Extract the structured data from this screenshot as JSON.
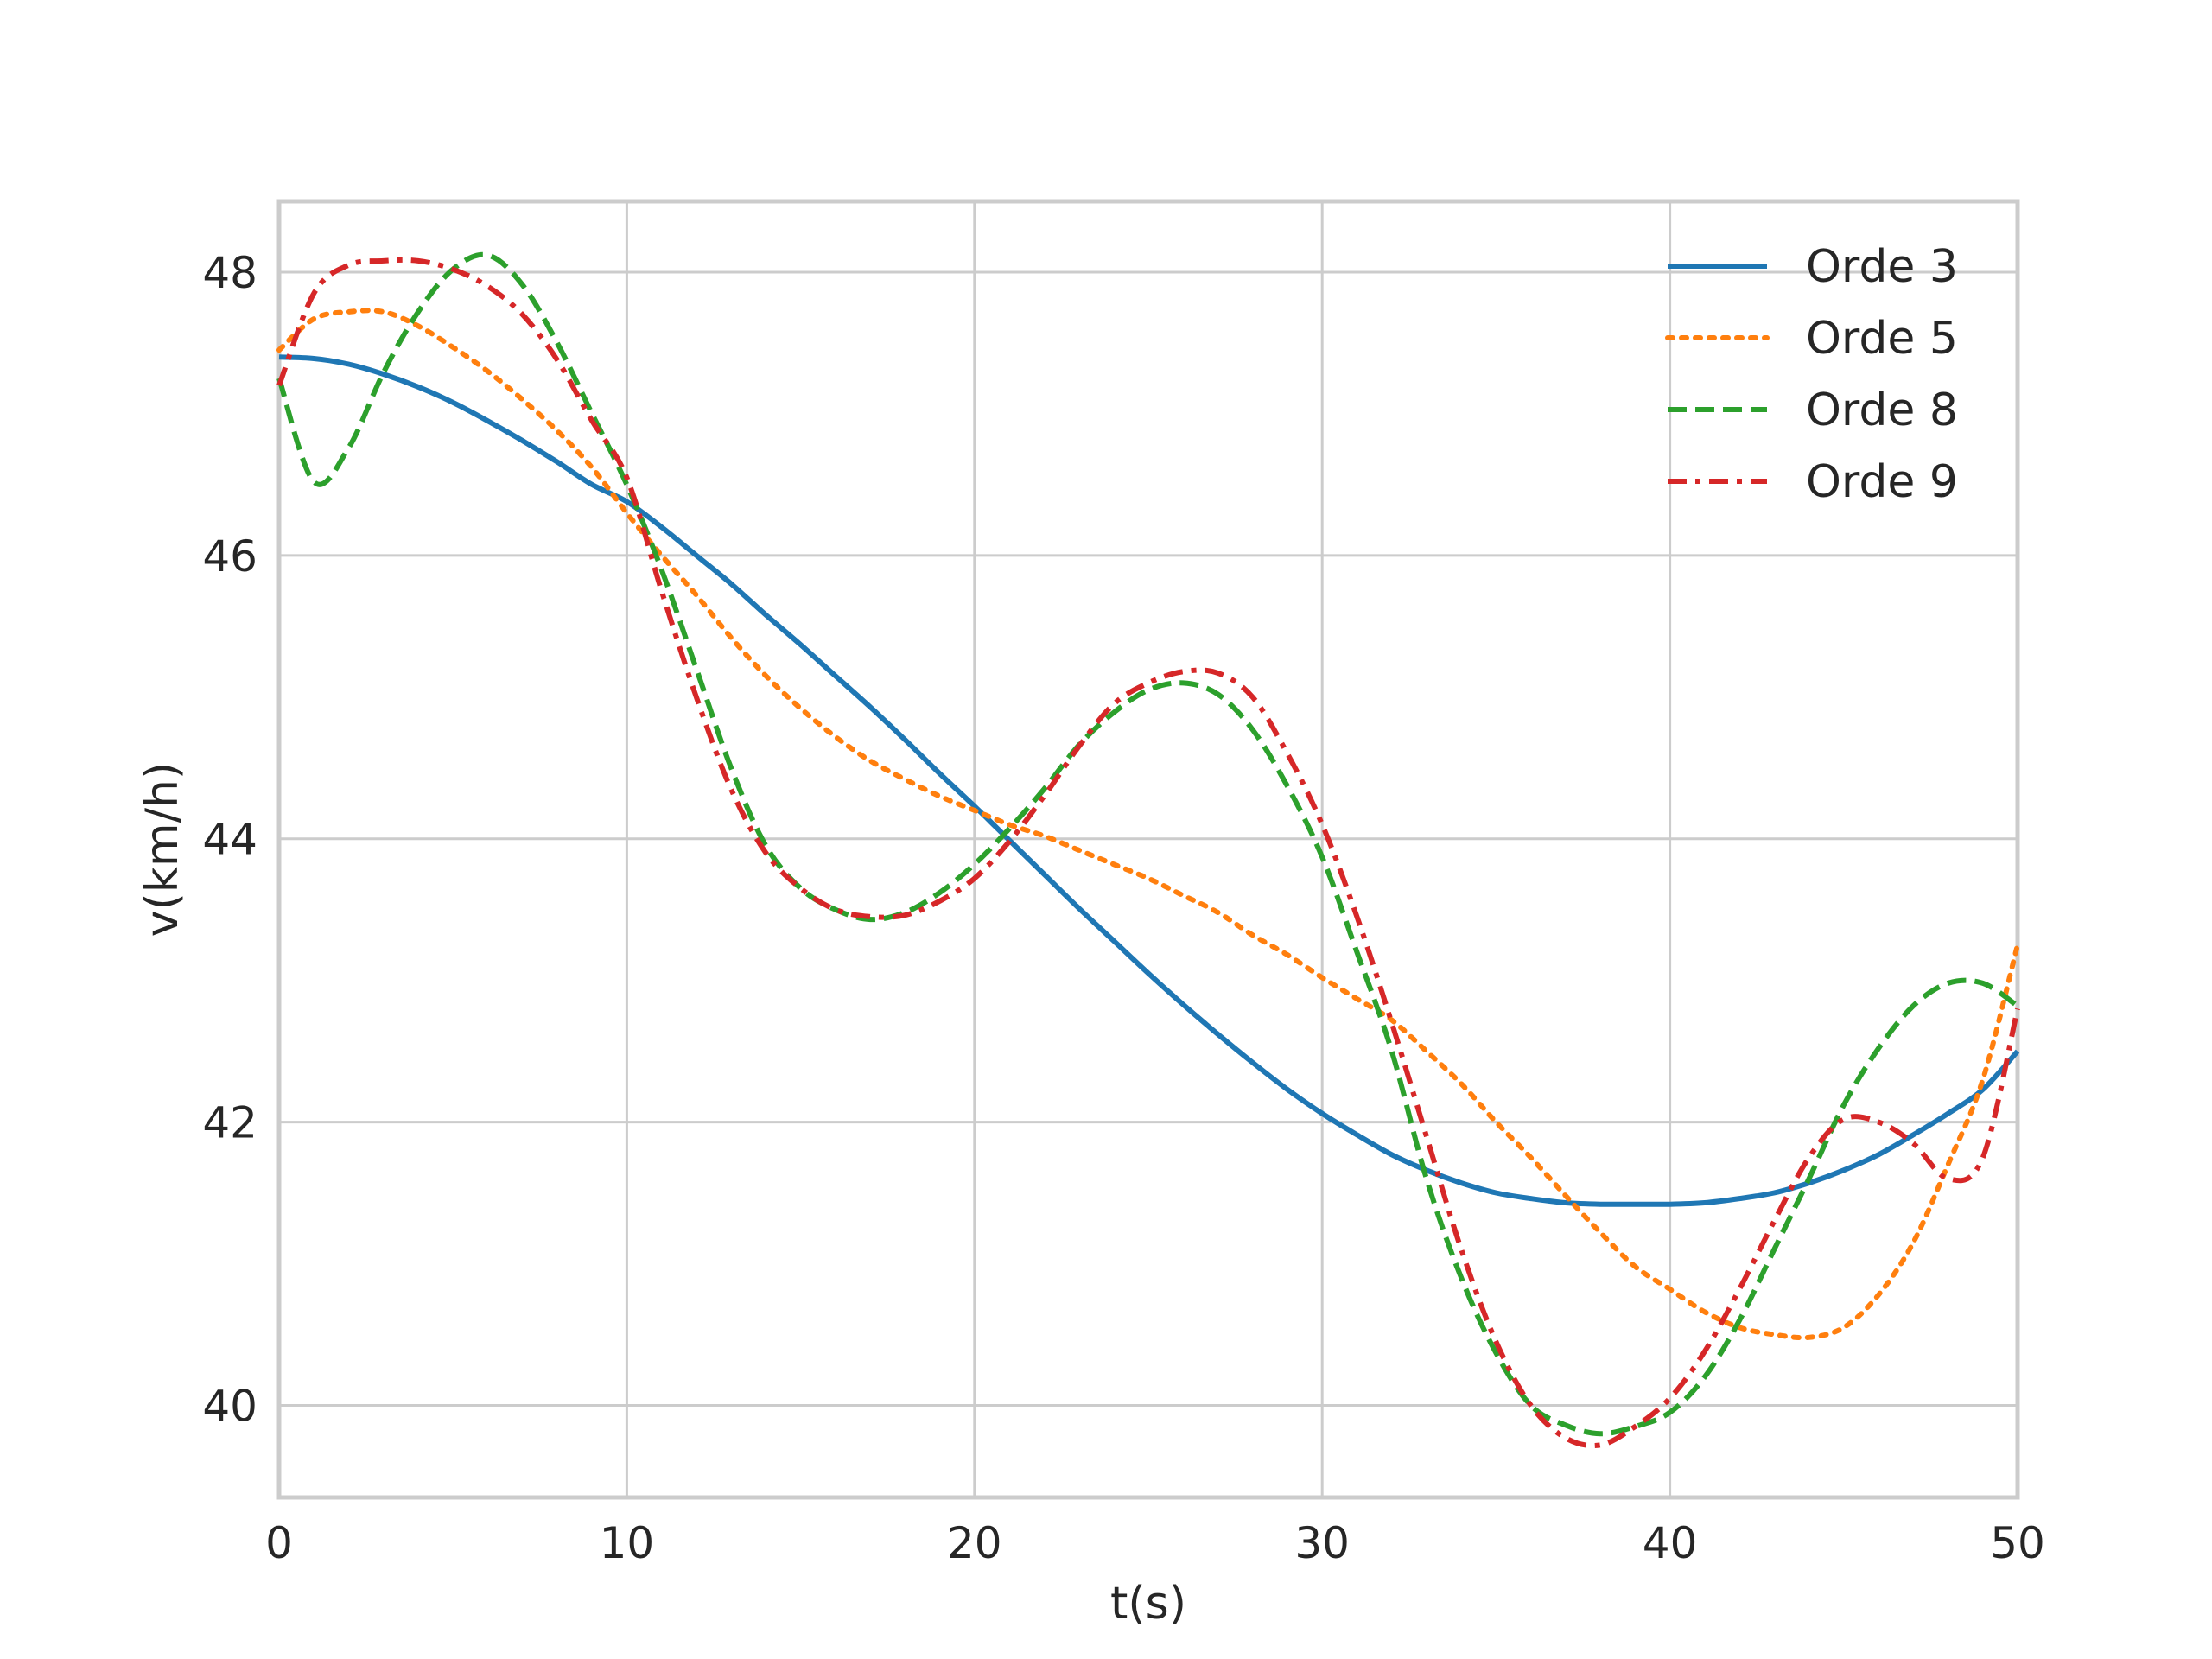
{
  "chart_data": {
    "type": "line",
    "title": "",
    "xlabel": "t(s)",
    "ylabel": "v(km/h)",
    "xlim": [
      0,
      50
    ],
    "ylim": [
      39.35,
      48.5
    ],
    "xticks": [
      0,
      10,
      20,
      30,
      40,
      50
    ],
    "xtick_labels": [
      "0",
      "10",
      "20",
      "30",
      "40",
      "50"
    ],
    "yticks": [
      40,
      42,
      44,
      46,
      48
    ],
    "ytick_labels": [
      "40",
      "42",
      "44",
      "46",
      "48"
    ],
    "grid": true,
    "legend_position": "top-right",
    "x": [
      0,
      1,
      2,
      3,
      4,
      5,
      6,
      7,
      8,
      9,
      10,
      11,
      12,
      13,
      14,
      15,
      16,
      17,
      18,
      19,
      20,
      21,
      22,
      23,
      24,
      25,
      26,
      27,
      28,
      29,
      30,
      31,
      32,
      33,
      34,
      35,
      36,
      37,
      38,
      39,
      40,
      41,
      42,
      43,
      44,
      45,
      46,
      47,
      48,
      49,
      50
    ],
    "series": [
      {
        "name": "Orde 3",
        "color": "#1f77b4",
        "dash": "solid",
        "values": [
          47.4,
          47.39,
          47.35,
          47.28,
          47.19,
          47.08,
          46.95,
          46.81,
          46.66,
          46.5,
          46.38,
          46.2,
          46.0,
          45.8,
          45.58,
          45.37,
          45.15,
          44.93,
          44.7,
          44.46,
          44.23,
          43.99,
          43.75,
          43.51,
          43.28,
          43.05,
          42.83,
          42.62,
          42.42,
          42.23,
          42.06,
          41.91,
          41.77,
          41.66,
          41.57,
          41.5,
          41.46,
          41.43,
          41.42,
          41.42,
          41.42,
          41.43,
          41.46,
          41.5,
          41.57,
          41.66,
          41.77,
          41.91,
          42.06,
          42.23,
          42.5
        ]
      },
      {
        "name": "Orde 5",
        "color": "#ff7f0e",
        "dash": "dotted",
        "values": [
          47.45,
          47.67,
          47.72,
          47.72,
          47.62,
          47.47,
          47.3,
          47.1,
          46.88,
          46.62,
          46.3,
          46.0,
          45.72,
          45.42,
          45.15,
          44.92,
          44.72,
          44.55,
          44.42,
          44.3,
          44.2,
          44.1,
          44.02,
          43.92,
          43.82,
          43.72,
          43.6,
          43.48,
          43.32,
          43.18,
          43.02,
          42.87,
          42.72,
          42.5,
          42.27,
          42.0,
          41.75,
          41.48,
          41.22,
          40.98,
          40.82,
          40.66,
          40.55,
          40.5,
          40.48,
          40.55,
          40.78,
          41.15,
          41.7,
          42.3,
          43.25
        ]
      },
      {
        "name": "Orde 8",
        "color": "#2ca02c",
        "dash": "dashed",
        "values": [
          47.25,
          46.52,
          46.76,
          47.29,
          47.72,
          48.02,
          48.12,
          47.91,
          47.5,
          47.0,
          46.5,
          45.9,
          45.2,
          44.5,
          43.95,
          43.65,
          43.5,
          43.43,
          43.48,
          43.62,
          43.82,
          44.07,
          44.35,
          44.66,
          44.89,
          45.05,
          45.1,
          45.02,
          44.77,
          44.37,
          43.87,
          43.2,
          42.5,
          41.6,
          40.9,
          40.37,
          40.0,
          39.86,
          39.8,
          39.85,
          39.95,
          40.2,
          40.6,
          41.1,
          41.6,
          42.12,
          42.52,
          42.82,
          42.98,
          42.98,
          42.82
        ]
      },
      {
        "name": "Orde 9",
        "color": "#d62728",
        "dash": "dashdot",
        "values": [
          47.2,
          47.85,
          48.05,
          48.08,
          48.08,
          48.02,
          47.9,
          47.7,
          47.38,
          46.95,
          46.55,
          45.75,
          45.0,
          44.35,
          43.9,
          43.65,
          43.5,
          43.45,
          43.46,
          43.56,
          43.72,
          43.98,
          44.3,
          44.65,
          44.95,
          45.1,
          45.18,
          45.17,
          45.0,
          44.6,
          44.1,
          43.45,
          42.7,
          41.9,
          41.1,
          40.45,
          40.0,
          39.77,
          39.72,
          39.85,
          40.05,
          40.38,
          40.82,
          41.3,
          41.75,
          42.02,
          42.0,
          41.85,
          41.6,
          41.75,
          42.8
        ]
      }
    ]
  }
}
